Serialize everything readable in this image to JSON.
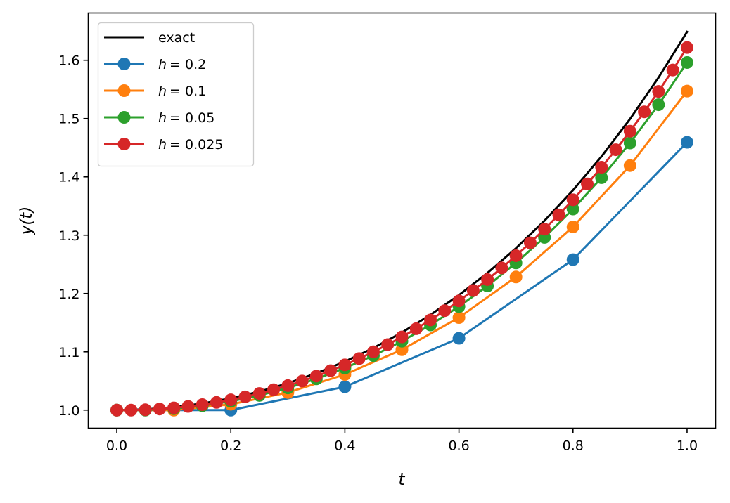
{
  "chart_data": {
    "type": "line",
    "title": "",
    "xlabel": "t",
    "ylabel": "y(t)",
    "xlim": [
      -0.05,
      1.05
    ],
    "ylim": [
      0.969,
      1.681
    ],
    "grid": false,
    "legend_position": "top-left",
    "xticks": [
      0.0,
      0.2,
      0.4,
      0.6,
      0.8,
      1.0
    ],
    "xtick_labels": [
      "0.0",
      "0.2",
      "0.4",
      "0.6",
      "0.8",
      "1.0"
    ],
    "yticks": [
      1.0,
      1.1,
      1.2,
      1.3,
      1.4,
      1.5,
      1.6
    ],
    "ytick_labels": [
      "1.0",
      "1.1",
      "1.2",
      "1.3",
      "1.4",
      "1.5",
      "1.6"
    ],
    "series": [
      {
        "name": "exact",
        "legend_prefix": "",
        "legend_value": "exact",
        "color": "#000000",
        "marker": false,
        "x": [
          0,
          0.05,
          0.1,
          0.15,
          0.2,
          0.25,
          0.3,
          0.35,
          0.4,
          0.45,
          0.5,
          0.55,
          0.6,
          0.65,
          0.7,
          0.75,
          0.8,
          0.85,
          0.9,
          0.95,
          1.0
        ],
        "values": [
          1.0,
          1.0013,
          1.005,
          1.0113,
          1.0202,
          1.0317,
          1.046,
          1.0632,
          1.0833,
          1.1065,
          1.1331,
          1.1634,
          1.1972,
          1.2352,
          1.2776,
          1.3248,
          1.3771,
          1.435,
          1.4993,
          1.5703,
          1.6487
        ]
      },
      {
        "name": "h = 0.2",
        "legend_prefix": "h",
        "legend_value": "= 0.2",
        "color": "#1f77b4",
        "marker": true,
        "x": [
          0,
          0.2,
          0.4,
          0.6,
          0.8,
          1.0
        ],
        "values": [
          1.0,
          1.0,
          1.04,
          1.1232,
          1.258,
          1.4593
        ]
      },
      {
        "name": "h = 0.1",
        "legend_prefix": "h",
        "legend_value": "= 0.1",
        "color": "#ff7f0e",
        "marker": true,
        "x": [
          0,
          0.1,
          0.2,
          0.3,
          0.4,
          0.5,
          0.6,
          0.7,
          0.8,
          0.9,
          1.0
        ],
        "values": [
          1.0,
          1.0,
          1.01,
          1.0302,
          1.0611,
          1.1036,
          1.1587,
          1.2283,
          1.3142,
          1.4193,
          1.5471
        ]
      },
      {
        "name": "h = 0.05",
        "legend_prefix": "h",
        "legend_value": "= 0.05",
        "color": "#2ca02c",
        "marker": true,
        "x": [
          0,
          0.05,
          0.1,
          0.15,
          0.2,
          0.25,
          0.3,
          0.35,
          0.4,
          0.45,
          0.5,
          0.55,
          0.6,
          0.65,
          0.7,
          0.75,
          0.8,
          0.85,
          0.9,
          0.95,
          1.0
        ],
        "values": [
          1.0,
          1.0,
          1.0025,
          1.0075,
          1.0151,
          1.0252,
          1.0381,
          1.0536,
          1.0721,
          1.0935,
          1.1181,
          1.1461,
          1.1776,
          1.2129,
          1.2524,
          1.2962,
          1.3448,
          1.3986,
          1.4581,
          1.5237,
          1.5961
        ]
      },
      {
        "name": "h = 0.025",
        "legend_prefix": "h",
        "legend_value": "= 0.025",
        "color": "#d62728",
        "marker": true,
        "x": [
          0,
          0.025,
          0.05,
          0.075,
          0.1,
          0.125,
          0.15,
          0.175,
          0.2,
          0.225,
          0.25,
          0.275,
          0.3,
          0.325,
          0.35,
          0.375,
          0.4,
          0.425,
          0.45,
          0.475,
          0.5,
          0.525,
          0.55,
          0.575,
          0.6,
          0.625,
          0.65,
          0.675,
          0.7,
          0.725,
          0.75,
          0.775,
          0.8,
          0.825,
          0.85,
          0.875,
          0.9,
          0.925,
          0.95,
          0.975,
          1.0
        ],
        "values": [
          1.0,
          1.0,
          1.0006,
          1.0019,
          1.0038,
          1.0063,
          1.0094,
          1.0132,
          1.0176,
          1.0227,
          1.0285,
          1.0349,
          1.042,
          1.0498,
          1.0584,
          1.0676,
          1.0776,
          1.0884,
          1.1,
          1.1123,
          1.1255,
          1.1396,
          1.1546,
          1.1705,
          1.1873,
          1.2051,
          1.2239,
          1.2438,
          1.2648,
          1.2869,
          1.3103,
          1.3348,
          1.3607,
          1.3879,
          1.4165,
          1.4466,
          1.4783,
          1.5115,
          1.5465,
          1.5832,
          1.6218
        ]
      }
    ]
  }
}
